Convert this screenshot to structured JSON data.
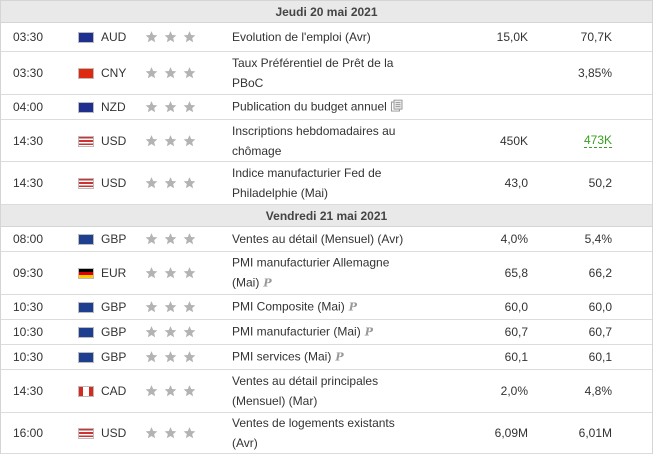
{
  "days": [
    {
      "header": "Jeudi 20 mai 2021",
      "rows": [
        {
          "time": "03:30",
          "flag": "au",
          "currency": "AUD",
          "event": "Evolution de l'emploi (Avr)",
          "icon": "",
          "previous": "15,0K",
          "actual": "70,7K",
          "actual_color": "normal",
          "h": 29
        },
        {
          "time": "03:30",
          "flag": "cn",
          "currency": "CNY",
          "event": "Taux Préférentiel de Prêt de la PBoC",
          "icon": "",
          "previous": "",
          "actual": "3,85%",
          "actual_color": "normal",
          "h": 43
        },
        {
          "time": "04:00",
          "flag": "nz",
          "currency": "NZD",
          "event": "Publication du budget annuel",
          "icon": "document-icon",
          "previous": "",
          "actual": "",
          "actual_color": "normal",
          "h": 25
        },
        {
          "time": "14:30",
          "flag": "us",
          "currency": "USD",
          "event": "Inscriptions hebdomadaires au chômage",
          "icon": "",
          "previous": "450K",
          "actual": "473K",
          "actual_color": "green",
          "h": 42
        },
        {
          "time": "14:30",
          "flag": "us",
          "currency": "USD",
          "event": "Indice manufacturier Fed de Philadelphie (Mai)",
          "icon": "",
          "previous": "43,0",
          "actual": "50,2",
          "actual_color": "normal",
          "h": 43
        }
      ]
    },
    {
      "header": "Vendredi 21 mai 2021",
      "rows": [
        {
          "time": "08:00",
          "flag": "gb",
          "currency": "GBP",
          "event": "Ventes au détail (Mensuel) (Avr)",
          "icon": "",
          "previous": "4,0%",
          "actual": "5,4%",
          "actual_color": "normal",
          "h": 25
        },
        {
          "time": "09:30",
          "flag": "de",
          "currency": "EUR",
          "event": "PMI manufacturier Allemagne (Mai)",
          "icon": "p-icon",
          "previous": "65,8",
          "actual": "66,2",
          "actual_color": "normal",
          "h": 43
        },
        {
          "time": "10:30",
          "flag": "gb",
          "currency": "GBP",
          "event": "PMI Composite (Mai)",
          "icon": "p-icon",
          "previous": "60,0",
          "actual": "60,0",
          "actual_color": "normal",
          "h": 25
        },
        {
          "time": "10:30",
          "flag": "gb",
          "currency": "GBP",
          "event": "PMI manufacturier (Mai)",
          "icon": "p-icon",
          "previous": "60,7",
          "actual": "60,7",
          "actual_color": "normal",
          "h": 25
        },
        {
          "time": "10:30",
          "flag": "gb",
          "currency": "GBP",
          "event": "PMI services (Mai)",
          "icon": "p-icon",
          "previous": "60,1",
          "actual": "60,1",
          "actual_color": "normal",
          "h": 25
        },
        {
          "time": "14:30",
          "flag": "ca",
          "currency": "CAD",
          "event": "Ventes au détail principales (Mensuel) (Mar)",
          "icon": "",
          "previous": "2,0%",
          "actual": "4,8%",
          "actual_color": "normal",
          "h": 43
        },
        {
          "time": "16:00",
          "flag": "us",
          "currency": "USD",
          "event": "Ventes de logements existants (Avr)",
          "icon": "",
          "previous": "6,09M",
          "actual": "6,01M",
          "actual_color": "normal",
          "h": 41
        }
      ]
    }
  ],
  "importance_stars": 3,
  "colors": {
    "star": "#b3b3b3",
    "green": "#3a9d23",
    "header_bg": "#e9e9e9"
  },
  "p_icon_glyph": "P"
}
